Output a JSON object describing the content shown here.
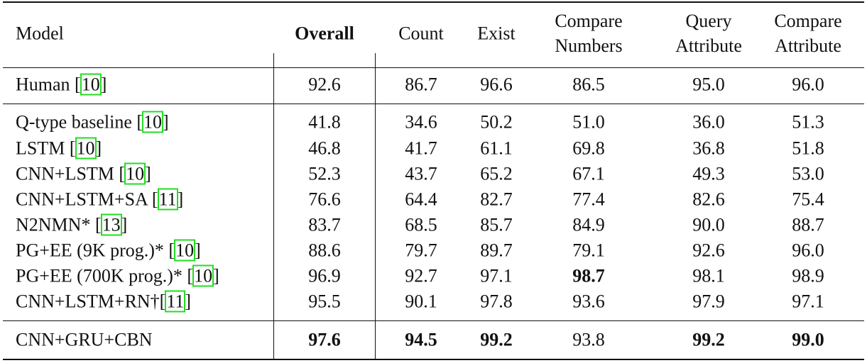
{
  "table": {
    "header": [
      "Model",
      "Overall",
      "Count",
      "Exist",
      "Compare\nNumbers",
      "Query\nAttribute",
      "Compare\nAttribute"
    ],
    "header_bold": [
      1
    ],
    "groups": [
      [
        {
          "pre": "Human [",
          "cite": "10",
          "post": "]",
          "cells": [
            "92.6",
            "86.7",
            "96.6",
            "86.5",
            "95.0",
            "96.0"
          ],
          "bold": []
        }
      ],
      [
        {
          "pre": "Q-type baseline [",
          "cite": "10",
          "post": "]",
          "cells": [
            "41.8",
            "34.6",
            "50.2",
            "51.0",
            "36.0",
            "51.3"
          ],
          "bold": []
        },
        {
          "pre": "LSTM [",
          "cite": "10",
          "post": "]",
          "cells": [
            "46.8",
            "41.7",
            "61.1",
            "69.8",
            "36.8",
            "51.8"
          ],
          "bold": []
        },
        {
          "pre": "CNN+LSTM [",
          "cite": "10",
          "post": "]",
          "cells": [
            "52.3",
            "43.7",
            "65.2",
            "67.1",
            "49.3",
            "53.0"
          ],
          "bold": []
        },
        {
          "pre": "CNN+LSTM+SA [",
          "cite": "11",
          "post": "]",
          "cells": [
            "76.6",
            "64.4",
            "82.7",
            "77.4",
            "82.6",
            "75.4"
          ],
          "bold": []
        },
        {
          "pre": "N2NMN* [",
          "cite": "13",
          "post": "]",
          "cells": [
            "83.7",
            "68.5",
            "85.7",
            "84.9",
            "90.0",
            "88.7"
          ],
          "bold": []
        },
        {
          "pre": "PG+EE (9K prog.)* [",
          "cite": "10",
          "post": "]",
          "cells": [
            "88.6",
            "79.7",
            "89.7",
            "79.1",
            "92.6",
            "96.0"
          ],
          "bold": []
        },
        {
          "pre": "PG+EE (700K prog.)* [",
          "cite": "10",
          "post": "]",
          "cells": [
            "96.9",
            "92.7",
            "97.1",
            "98.7",
            "98.1",
            "98.9"
          ],
          "bold": [
            3
          ]
        },
        {
          "pre": "CNN+LSTM+RN†[",
          "cite": "11",
          "post": "]",
          "cells": [
            "95.5",
            "90.1",
            "97.8",
            "93.6",
            "97.9",
            "97.1"
          ],
          "bold": []
        }
      ],
      [
        {
          "pre": "CNN+GRU+CBN",
          "cells": [
            "97.6",
            "94.5",
            "99.2",
            "93.8",
            "99.2",
            "99.0"
          ],
          "bold": [
            0,
            1,
            2,
            4,
            5
          ]
        }
      ]
    ]
  }
}
